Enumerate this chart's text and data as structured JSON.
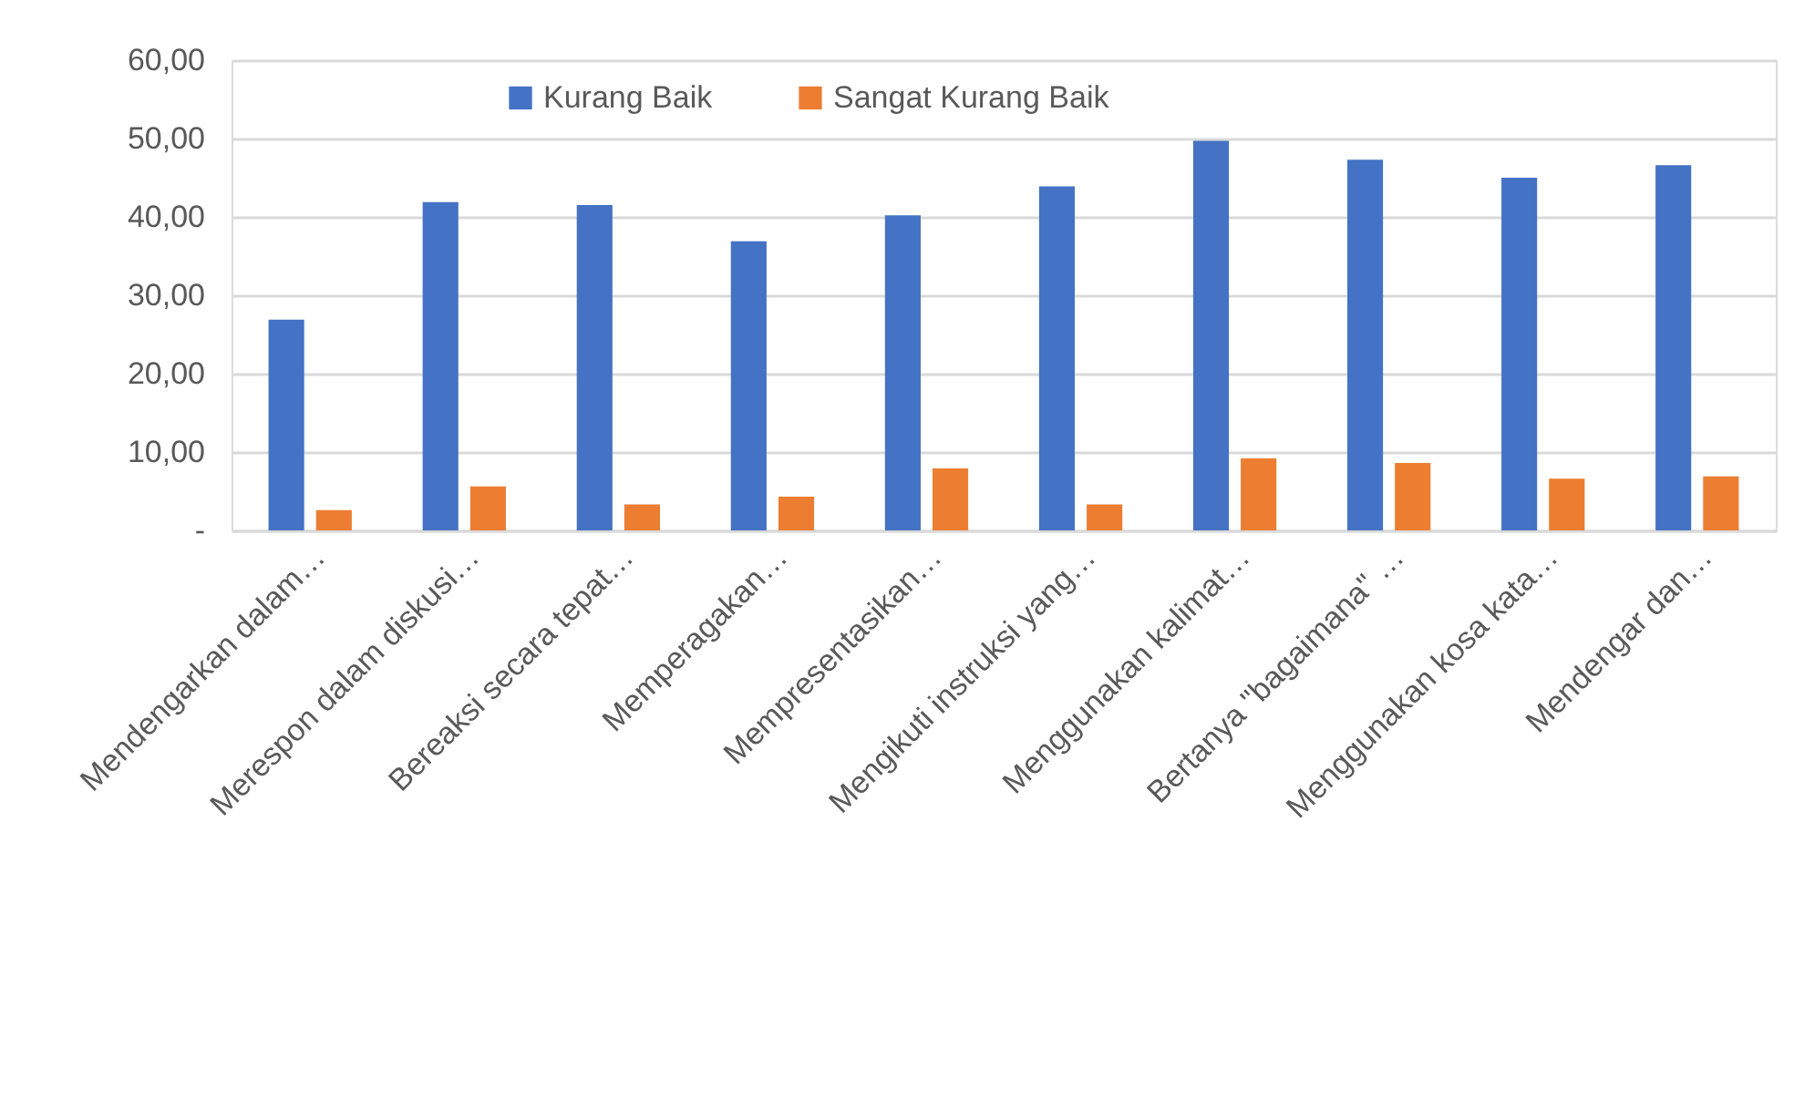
{
  "chart_data": {
    "type": "bar",
    "categories": [
      "Mendengarkan dalam…",
      "Merespon dalam diskusi…",
      "Bereaksi secara tepat…",
      "Memperagakan…",
      "Mempresentasikan…",
      "Mengikuti instruksi yang…",
      "Menggunakan kalimat…",
      "Bertanya \"bagaimana\" …",
      "Menggunakan kosa kata…",
      "Mendengar dan…"
    ],
    "series": [
      {
        "name": "Kurang Baik",
        "color": "#4472c4",
        "values": [
          26.9,
          41.9,
          41.5,
          36.9,
          40.2,
          43.9,
          49.7,
          47.3,
          45.0,
          46.6
        ]
      },
      {
        "name": "Sangat Kurang Baik",
        "color": "#ed7d31",
        "values": [
          2.6,
          5.6,
          3.3,
          4.3,
          7.9,
          3.3,
          9.2,
          8.6,
          6.6,
          6.9
        ]
      }
    ],
    "ylim": [
      0,
      60
    ],
    "yticks": [
      {
        "value": 0,
        "label": "-"
      },
      {
        "value": 10,
        "label": "10,00"
      },
      {
        "value": 20,
        "label": "20,00"
      },
      {
        "value": 30,
        "label": "30,00"
      },
      {
        "value": 40,
        "label": "40,00"
      },
      {
        "value": 50,
        "label": "50,00"
      },
      {
        "value": 60,
        "label": "60,00"
      }
    ],
    "grid": "y",
    "legend": "top"
  }
}
